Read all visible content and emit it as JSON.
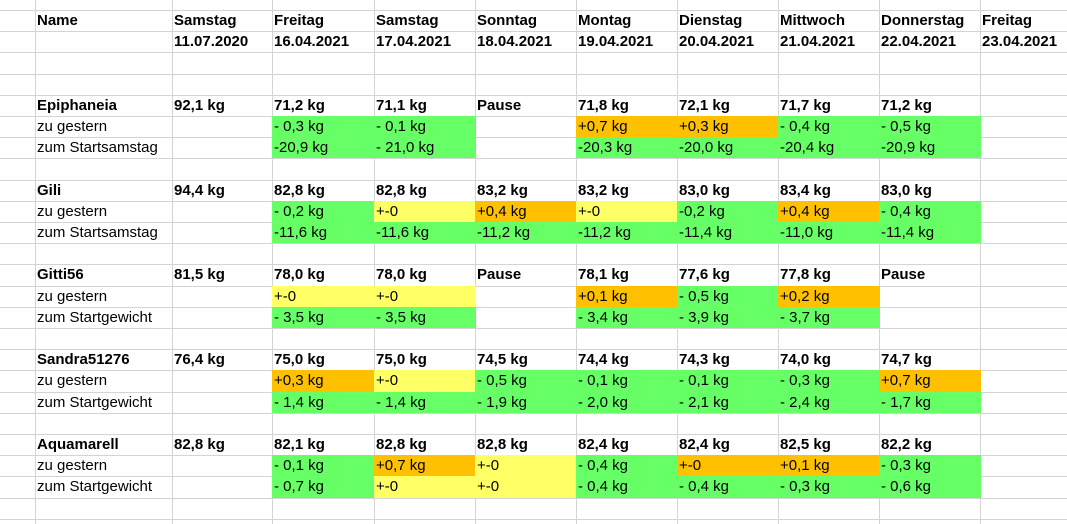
{
  "header": {
    "name_label": "Name",
    "days": [
      {
        "day": "Samstag",
        "date": "11.07.2020"
      },
      {
        "day": "Freitag",
        "date": "16.04.2021"
      },
      {
        "day": "Samstag",
        "date": "17.04.2021"
      },
      {
        "day": "Sonntag",
        "date": "18.04.2021"
      },
      {
        "day": "Montag",
        "date": "19.04.2021"
      },
      {
        "day": "Dienstag",
        "date": "20.04.2021"
      },
      {
        "day": "Mittwoch",
        "date": "21.04.2021"
      },
      {
        "day": "Donnerstag",
        "date": "22.04.2021"
      },
      {
        "day": "Freitag",
        "date": "23.04.2021"
      }
    ]
  },
  "colors": {
    "green": "#66ff66",
    "orange": "#ffc000",
    "yellow": "#ffff66",
    "grid": "#d4d4d4"
  },
  "people": [
    {
      "name": "Epiphaneia",
      "weights": [
        "92,1 kg",
        "71,2 kg",
        "71,1 kg",
        "Pause",
        "71,8 kg",
        "72,1 kg",
        "71,7 kg",
        "71,2 kg",
        ""
      ],
      "rows": [
        {
          "label": "zu gestern",
          "values": [
            "",
            "- 0,3 kg",
            "- 0,1 kg",
            "",
            "+0,7 kg",
            "+0,3 kg",
            "- 0,4 kg",
            "- 0,5 kg",
            ""
          ],
          "colors": [
            "",
            "green",
            "green",
            "",
            "orange",
            "orange",
            "green",
            "green",
            ""
          ]
        },
        {
          "label": "zum Startsamstag",
          "values": [
            "",
            "-20,9 kg",
            "- 21,0 kg",
            "",
            "-20,3 kg",
            "-20,0 kg",
            "-20,4 kg",
            "-20,9 kg",
            ""
          ],
          "colors": [
            "",
            "green",
            "green",
            "",
            "green",
            "green",
            "green",
            "green",
            ""
          ]
        }
      ]
    },
    {
      "name": "Gili",
      "weights": [
        "94,4 kg",
        "82,8 kg",
        "82,8 kg",
        "83,2 kg",
        "83,2 kg",
        "83,0 kg",
        "83,4 kg",
        "83,0 kg",
        ""
      ],
      "rows": [
        {
          "label": "zu gestern",
          "values": [
            "",
            "- 0,2 kg",
            "+-0",
            "+0,4 kg",
            "+-0",
            "-0,2 kg",
            "+0,4 kg",
            "- 0,4 kg",
            ""
          ],
          "colors": [
            "",
            "green",
            "yellow",
            "orange",
            "yellow",
            "green",
            "orange",
            "green",
            ""
          ]
        },
        {
          "label": "zum Startsamstag",
          "values": [
            "",
            "-11,6 kg",
            "-11,6 kg",
            "-11,2 kg",
            "-11,2 kg",
            "-11,4 kg",
            "-11,0 kg",
            "-11,4 kg",
            ""
          ],
          "colors": [
            "",
            "green",
            "green",
            "green",
            "green",
            "green",
            "green",
            "green",
            ""
          ]
        }
      ]
    },
    {
      "name": "Gitti56",
      "weights": [
        "81,5 kg",
        "78,0 kg",
        "78,0 kg",
        "Pause",
        "78,1 kg",
        "77,6 kg",
        "77,8 kg",
        "Pause",
        ""
      ],
      "rows": [
        {
          "label": "zu gestern",
          "values": [
            "",
            "+-0",
            "+-0",
            "",
            "+0,1 kg",
            "- 0,5 kg",
            "+0,2 kg",
            "",
            ""
          ],
          "colors": [
            "",
            "yellow",
            "yellow",
            "",
            "orange",
            "green",
            "orange",
            "",
            ""
          ]
        },
        {
          "label": "zum Startgewicht",
          "values": [
            "",
            "- 3,5 kg",
            "- 3,5 kg",
            "",
            "- 3,4 kg",
            "- 3,9 kg",
            "- 3,7 kg",
            "",
            ""
          ],
          "colors": [
            "",
            "green",
            "green",
            "",
            "green",
            "green",
            "green",
            "",
            ""
          ]
        }
      ]
    },
    {
      "name": "Sandra51276",
      "weights": [
        "76,4 kg",
        "75,0 kg",
        "75,0 kg",
        "74,5 kg",
        "74,4 kg",
        "74,3 kg",
        "74,0 kg",
        "74,7 kg",
        ""
      ],
      "rows": [
        {
          "label": "zu gestern",
          "values": [
            "",
            "+0,3 kg",
            "+-0",
            "- 0,5 kg",
            "- 0,1 kg",
            "- 0,1 kg",
            "- 0,3 kg",
            "+0,7 kg",
            ""
          ],
          "colors": [
            "",
            "orange",
            "yellow",
            "green",
            "green",
            "green",
            "green",
            "orange",
            ""
          ]
        },
        {
          "label": "zum Startgewicht",
          "values": [
            "",
            "- 1,4 kg",
            "- 1,4 kg",
            "- 1,9 kg",
            "- 2,0 kg",
            "- 2,1 kg",
            "- 2,4 kg",
            "- 1,7 kg",
            ""
          ],
          "colors": [
            "",
            "green",
            "green",
            "green",
            "green",
            "green",
            "green",
            "green",
            ""
          ]
        }
      ]
    },
    {
      "name": "Aquamarell",
      "weights": [
        "82,8 kg",
        "82,1 kg",
        "82,8 kg",
        "82,8 kg",
        "82,4 kg",
        "82,4 kg",
        "82,5 kg",
        "82,2 kg",
        ""
      ],
      "rows": [
        {
          "label": "zu gestern",
          "values": [
            "",
            "- 0,1 kg",
            "+0,7 kg",
            "+-0",
            "- 0,4 kg",
            "+-0",
            "+0,1 kg",
            "- 0,3 kg",
            ""
          ],
          "colors": [
            "",
            "green",
            "orange",
            "yellow",
            "green",
            "orange",
            "orange",
            "green",
            ""
          ]
        },
        {
          "label": "zum Startgewicht",
          "values": [
            "",
            "- 0,7 kg",
            "+-0",
            "+-0",
            "- 0,4 kg",
            "- 0,4 kg",
            "- 0,3 kg",
            "- 0,6 kg",
            ""
          ],
          "colors": [
            "",
            "green",
            "yellow",
            "yellow",
            "green",
            "green",
            "green",
            "green",
            ""
          ]
        }
      ]
    }
  ]
}
